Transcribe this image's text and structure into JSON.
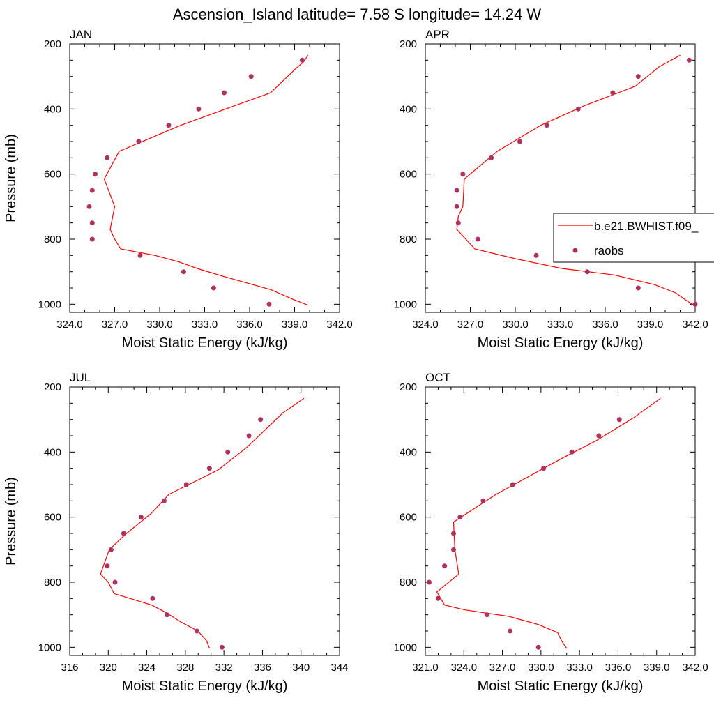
{
  "figure": {
    "title": "Ascension_Island  latitude= 7.58 S longitude= 14.24 W"
  },
  "colors": {
    "model": "#ff0000",
    "obs": "#b03060",
    "axis": "#000000"
  },
  "legend": {
    "model_label": "b.e21.BWHIST.f09_",
    "obs_label": "raobs",
    "placement": "right-middle of APR panel"
  },
  "chart_data": [
    {
      "type": "line",
      "panel_label": "JAN",
      "xlabel": "Moist Static Energy (kJ/kg)",
      "ylabel": "Pressure (mb)",
      "xlim": [
        324,
        342
      ],
      "xticks": [
        324,
        327,
        330,
        333,
        336,
        339,
        342
      ],
      "xtick_labels": [
        "324.0",
        "327.0",
        "330.0",
        "333.0",
        "336.0",
        "339.0",
        "342.0"
      ],
      "ylim": [
        1025,
        200
      ],
      "yticks": [
        200,
        400,
        600,
        800,
        1000
      ],
      "ytick_labels": [
        "200",
        "400",
        "600",
        "800",
        "1000"
      ],
      "series": [
        {
          "name": "b.e21.BWHIST.f09_",
          "style": "line",
          "x": [
            339.9,
            338.9,
            337.4,
            334.3,
            332.5,
            331.3,
            329.7,
            327.4,
            327.0,
            326.7,
            327.0,
            326.3,
            327.3,
            331.4,
            334.4,
            337.4,
            339.1,
            339.6,
            339.9
          ],
          "y": [
            1003,
            985,
            955,
            915,
            890,
            870,
            850,
            830,
            800,
            770,
            700,
            615,
            530,
            450,
            400,
            350,
            275,
            255,
            235
          ]
        },
        {
          "name": "raobs",
          "style": "markers",
          "x": [
            339.5,
            336.1,
            334.3,
            332.6,
            330.6,
            328.6,
            326.5,
            325.7,
            325.5,
            325.3,
            325.5,
            325.5,
            328.7,
            331.6,
            333.6,
            337.3
          ],
          "y": [
            250,
            300,
            350,
            400,
            450,
            500,
            550,
            600,
            650,
            700,
            750,
            800,
            850,
            900,
            950,
            1000
          ]
        }
      ]
    },
    {
      "type": "line",
      "panel_label": "APR",
      "xlabel": "Moist Static Energy (kJ/kg)",
      "ylabel": "",
      "xlim": [
        324,
        342
      ],
      "xticks": [
        324,
        327,
        330,
        333,
        336,
        339,
        342
      ],
      "xtick_labels": [
        "324.0",
        "327.0",
        "330.0",
        "333.0",
        "336.0",
        "339.0",
        "342.0"
      ],
      "ylim": [
        1025,
        200
      ],
      "yticks": [
        200,
        400,
        600,
        800,
        1000
      ],
      "ytick_labels": [
        "200",
        "400",
        "600",
        "800",
        "1000"
      ],
      "series": [
        {
          "name": "b.e21.BWHIST.f09_",
          "style": "line",
          "x": [
            341.9,
            341.3,
            340.7,
            339.3,
            336.6,
            333.1,
            330.0,
            327.3,
            326.1,
            326.2,
            326.5,
            326.6,
            328.8,
            331.7,
            334.6,
            338.0,
            339.6,
            341.0
          ],
          "y": [
            1003,
            985,
            965,
            940,
            910,
            890,
            860,
            830,
            770,
            730,
            700,
            615,
            530,
            450,
            390,
            330,
            270,
            235
          ]
        },
        {
          "name": "raobs",
          "style": "markers",
          "x": [
            341.6,
            338.2,
            336.5,
            334.2,
            332.1,
            330.3,
            328.4,
            326.5,
            326.1,
            326.1,
            326.2,
            327.5,
            331.4,
            334.8,
            338.2,
            342.0
          ],
          "y": [
            250,
            300,
            350,
            400,
            450,
            500,
            550,
            600,
            650,
            700,
            750,
            800,
            850,
            900,
            950,
            1000
          ]
        }
      ]
    },
    {
      "type": "line",
      "panel_label": "JUL",
      "xlabel": "Moist Static Energy (kJ/kg)",
      "ylabel": "Pressure (mb)",
      "xlim": [
        316,
        344
      ],
      "xticks": [
        316,
        320,
        324,
        328,
        332,
        336,
        340,
        344
      ],
      "xtick_labels": [
        "316",
        "320",
        "324",
        "328",
        "332",
        "336",
        "340",
        "344"
      ],
      "ylim": [
        1025,
        200
      ],
      "yticks": [
        200,
        400,
        600,
        800,
        1000
      ],
      "ytick_labels": [
        "200",
        "400",
        "600",
        "800",
        "1000"
      ],
      "series": [
        {
          "name": "b.e21.BWHIST.f09_",
          "style": "line",
          "x": [
            330.5,
            330.2,
            329.3,
            327.4,
            326.1,
            324.5,
            320.6,
            320.0,
            319.2,
            320.1,
            321.9,
            324.4,
            326.3,
            331.4,
            334.4,
            338.1,
            340.3
          ],
          "y": [
            1003,
            980,
            950,
            920,
            895,
            870,
            835,
            800,
            775,
            700,
            650,
            590,
            530,
            455,
            385,
            280,
            235
          ]
        },
        {
          "name": "raobs",
          "style": "markers",
          "x": [
            335.8,
            334.6,
            332.4,
            330.5,
            328.1,
            325.8,
            323.4,
            321.6,
            320.3,
            319.9,
            320.7,
            324.6,
            326.1,
            329.2,
            331.8
          ],
          "y": [
            300,
            350,
            400,
            450,
            500,
            550,
            600,
            650,
            700,
            750,
            800,
            850,
            900,
            950,
            1000
          ]
        }
      ]
    },
    {
      "type": "line",
      "panel_label": "OCT",
      "xlabel": "Moist Static Energy (kJ/kg)",
      "ylabel": "",
      "xlim": [
        321,
        342
      ],
      "xticks": [
        321,
        324,
        327,
        330,
        333,
        336,
        339,
        342
      ],
      "xtick_labels": [
        "321.0",
        "324.0",
        "327.0",
        "330.0",
        "333.0",
        "336.0",
        "339.0",
        "342.0"
      ],
      "ylim": [
        1025,
        200
      ],
      "yticks": [
        200,
        400,
        600,
        800,
        1000
      ],
      "ytick_labels": [
        "200",
        "400",
        "600",
        "800",
        "1000"
      ],
      "series": [
        {
          "name": "b.e21.BWHIST.f09_",
          "style": "line",
          "x": [
            332.0,
            331.6,
            331.3,
            329.8,
            327.5,
            324.1,
            322.5,
            321.9,
            323.6,
            323.3,
            323.2,
            326.5,
            331.6,
            334.3,
            337.2,
            339.3
          ],
          "y": [
            1003,
            980,
            955,
            930,
            905,
            885,
            870,
            830,
            775,
            700,
            615,
            530,
            420,
            365,
            295,
            235
          ]
        },
        {
          "name": "raobs",
          "style": "markers",
          "x": [
            336.1,
            334.5,
            332.4,
            330.2,
            327.8,
            325.5,
            323.7,
            323.2,
            323.2,
            322.5,
            321.3,
            322.0,
            325.8,
            327.6,
            329.8
          ],
          "y": [
            300,
            350,
            400,
            450,
            500,
            550,
            600,
            650,
            700,
            750,
            800,
            850,
            900,
            950,
            1000
          ]
        }
      ]
    }
  ]
}
